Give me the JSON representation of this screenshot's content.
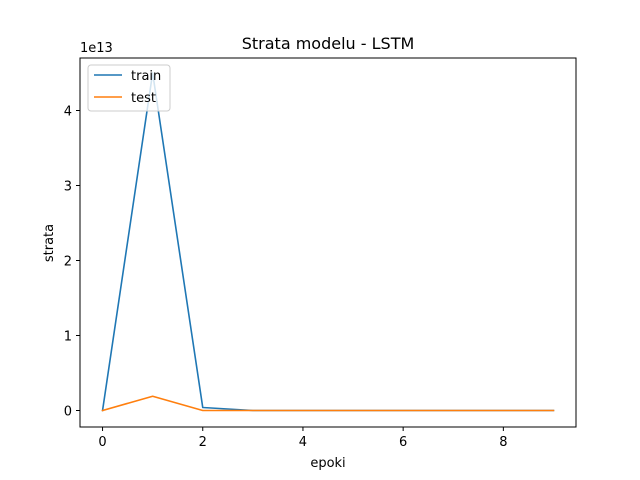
{
  "chart_data": {
    "type": "line",
    "title": "Strata modelu - LSTM",
    "xlabel": "epoki",
    "ylabel": "strata",
    "y_offset_label": "1e13",
    "x": [
      0,
      1,
      2,
      3,
      4,
      5,
      6,
      7,
      8,
      9
    ],
    "xlim": [
      -0.45,
      9.45
    ],
    "ylim": [
      -0.22,
      4.7
    ],
    "y_scale_note": "values in units of 1e13",
    "x_ticks": [
      0,
      2,
      4,
      6,
      8
    ],
    "x_tick_labels": [
      "0",
      "2",
      "4",
      "6",
      "8"
    ],
    "y_ticks": [
      0,
      1,
      2,
      3,
      4
    ],
    "y_tick_labels": [
      "0",
      "1",
      "2",
      "3",
      "4"
    ],
    "series": [
      {
        "name": "train",
        "color": "#1f77b4",
        "values": [
          0.0,
          4.5,
          0.04,
          0.0,
          0.0,
          0.0,
          0.0,
          0.0,
          0.0,
          0.0
        ]
      },
      {
        "name": "test",
        "color": "#ff7f0e",
        "values": [
          0.0,
          0.19,
          0.0,
          0.0,
          0.0,
          0.0,
          0.0,
          0.0,
          0.0,
          0.0
        ]
      }
    ],
    "legend": {
      "position": "top-left",
      "entries": [
        "train",
        "test"
      ]
    },
    "grid": false
  }
}
